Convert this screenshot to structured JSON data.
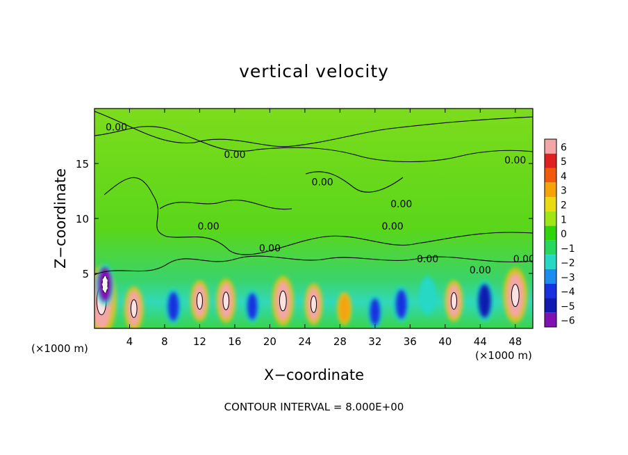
{
  "chart_data": {
    "type": "heatmap",
    "title": "vertical velocity",
    "xlabel": "X−coordinate",
    "ylabel": "Z−coordinate",
    "x_units": "(×1000 m)",
    "y_units": "(×1000 m)",
    "footer": "CONTOUR INTERVAL = 8.000E+00",
    "xlim": [
      0,
      50
    ],
    "ylim": [
      0,
      20
    ],
    "x_ticks": [
      4,
      8,
      12,
      16,
      20,
      24,
      28,
      32,
      36,
      40,
      44,
      48
    ],
    "y_ticks": [
      5,
      10,
      15
    ],
    "colorbar": {
      "levels": [
        6,
        5,
        4,
        3,
        2,
        1,
        0,
        -1,
        -2,
        -3,
        -4,
        -5,
        -6
      ],
      "colors": [
        "#f4a6a6",
        "#e0201e",
        "#f25a0b",
        "#f6a30a",
        "#eadb10",
        "#9ee616",
        "#30d40c",
        "#27d85e",
        "#25d9c4",
        "#1c8cf0",
        "#1830e0",
        "#101ab0",
        "#8010b0"
      ]
    },
    "contour_labels": [
      {
        "text": "0.00",
        "x": 2.5,
        "y": 18
      },
      {
        "text": "0.00",
        "x": 16,
        "y": 15.5
      },
      {
        "text": "0.00",
        "x": 13,
        "y": 9
      },
      {
        "text": "0.00",
        "x": 20,
        "y": 7
      },
      {
        "text": "0.00",
        "x": 26,
        "y": 13
      },
      {
        "text": "0.00",
        "x": 35,
        "y": 11
      },
      {
        "text": "0.00",
        "x": 34,
        "y": 9
      },
      {
        "text": "0.00",
        "x": 38,
        "y": 6
      },
      {
        "text": "0.00",
        "x": 44,
        "y": 5
      },
      {
        "text": "0.00",
        "x": 48,
        "y": 15
      },
      {
        "text": "0.00",
        "x": 49,
        "y": 6
      }
    ],
    "cells": [
      {
        "x": 0.8,
        "y": 2.5,
        "w": 0.25,
        "value": 6
      },
      {
        "x": 1.2,
        "y": 4,
        "w": 0.15,
        "value": -6
      },
      {
        "x": 4.5,
        "y": 1.8,
        "w": 0.16,
        "value": 6
      },
      {
        "x": 9,
        "y": 2,
        "w": 0.13,
        "value": -4
      },
      {
        "x": 12,
        "y": 2.5,
        "w": 0.15,
        "value": 6
      },
      {
        "x": 15,
        "y": 2.5,
        "w": 0.16,
        "value": 6
      },
      {
        "x": 18,
        "y": 2,
        "w": 0.12,
        "value": -4
      },
      {
        "x": 21.5,
        "y": 2.5,
        "w": 0.18,
        "value": 6
      },
      {
        "x": 25,
        "y": 2.2,
        "w": 0.15,
        "value": 6
      },
      {
        "x": 28.5,
        "y": 1.8,
        "w": 0.12,
        "value": 3
      },
      {
        "x": 32,
        "y": 1.5,
        "w": 0.12,
        "value": -4
      },
      {
        "x": 35,
        "y": 2.2,
        "w": 0.13,
        "value": -4
      },
      {
        "x": 38,
        "y": 3,
        "w": 0.14,
        "value": -2
      },
      {
        "x": 41,
        "y": 2.5,
        "w": 0.15,
        "value": 6
      },
      {
        "x": 44.5,
        "y": 2.5,
        "w": 0.15,
        "value": -5
      },
      {
        "x": 48,
        "y": 3,
        "w": 0.2,
        "value": 6
      }
    ]
  }
}
